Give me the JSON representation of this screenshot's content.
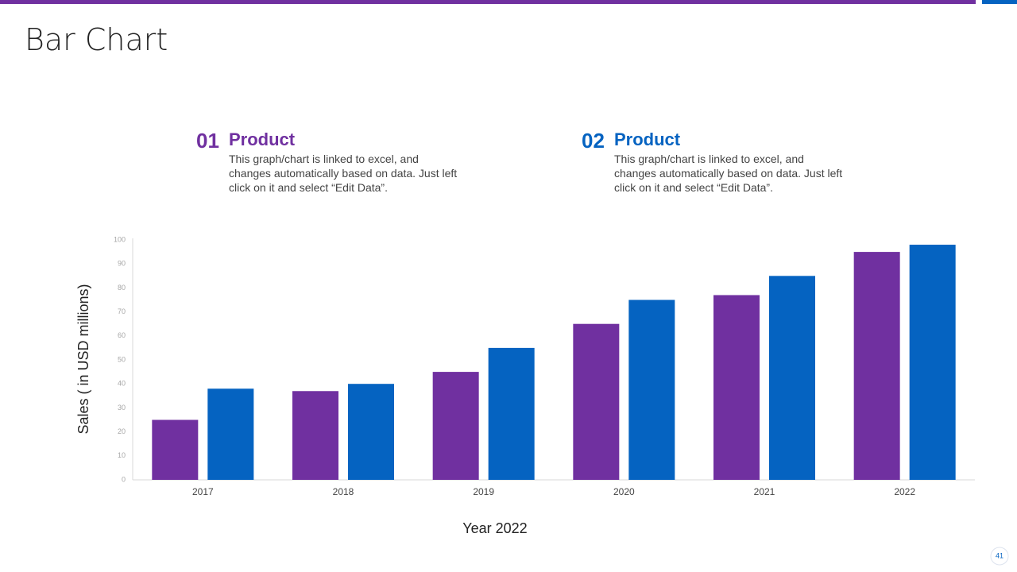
{
  "title": "Bar Chart",
  "page_number": 41,
  "legend_notes": [
    {
      "number": "01",
      "text": "This graph/chart is linked to excel, and changes automatically based on data. Just left click on it and select “Edit Data”."
    },
    {
      "number": "02",
      "text": "This graph/chart is linked to excel, and changes automatically based on data. Just left click on it and select “Edit Data”."
    }
  ],
  "chart_data": {
    "type": "bar",
    "x_label": "Year 2022",
    "y_label": "Sales  ( in USD millions)",
    "categories": [
      "2017",
      "2018",
      "2019",
      "2020",
      "2021",
      "2022"
    ],
    "series": [
      {
        "name": "Product",
        "color": "#7030a0",
        "values": [
          25,
          37,
          45,
          65,
          77,
          95
        ]
      },
      {
        "name": "Product",
        "color": "#0563c1",
        "values": [
          38,
          40,
          55,
          75,
          85,
          98
        ]
      }
    ],
    "ylim": [
      0,
      100
    ],
    "yticks": [
      0,
      10,
      20,
      30,
      40,
      50,
      60,
      70,
      80,
      90,
      100
    ],
    "grid": false
  }
}
